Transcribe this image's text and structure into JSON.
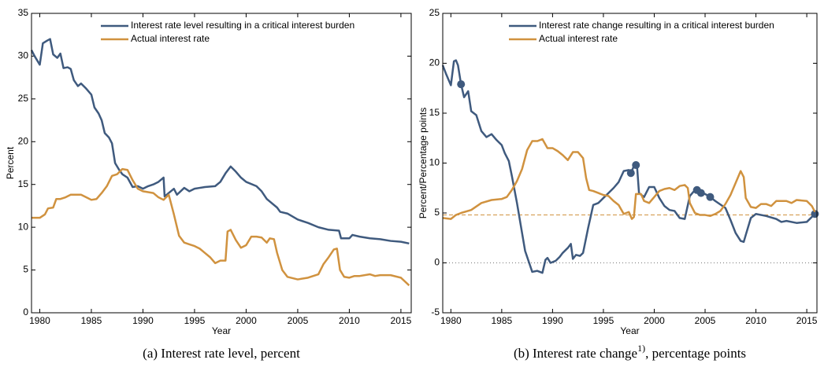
{
  "chart_data": [
    {
      "type": "line",
      "ylabel": "Percent",
      "xlabel": "Year",
      "caption": "(a) Interest rate level, percent",
      "xlim": [
        1979.2,
        2016
      ],
      "xticks": [
        1980,
        1985,
        1990,
        1995,
        2000,
        2005,
        2010,
        2015
      ],
      "ylim": [
        0,
        35
      ],
      "yticks": [
        0,
        5,
        10,
        15,
        20,
        25,
        30,
        35
      ],
      "series": [
        {
          "name": "Interest rate level resulting in a critical interest burden",
          "color": "#3f5a7e",
          "x": [
            1979.2,
            1979.5,
            1980,
            1980.3,
            1980.7,
            1981,
            1981.3,
            1981.7,
            1982,
            1982.3,
            1982.7,
            1983,
            1983.3,
            1983.7,
            1984,
            1984.5,
            1985,
            1985.3,
            1985.7,
            1986,
            1986.3,
            1986.7,
            1987,
            1987.3,
            1987.7,
            1988,
            1988.5,
            1989,
            1989.5,
            1990,
            1990.5,
            1991,
            1991.5,
            1992,
            1992.1,
            1992.5,
            1993,
            1993.3,
            1994,
            1994.5,
            1995,
            1995.5,
            1996,
            1997,
            1997.5,
            1998,
            1998.5,
            1999,
            1999.5,
            2000,
            2001,
            2001.5,
            2002,
            2003,
            2003.3,
            2004,
            2005,
            2006,
            2007,
            2008,
            2009,
            2009.2,
            2010,
            2010.3,
            2011,
            2012,
            2013,
            2014,
            2015,
            2015.8
          ],
          "values": [
            30.7,
            30,
            29,
            31.5,
            31.8,
            32,
            30.2,
            29.8,
            30.3,
            28.6,
            28.7,
            28.5,
            27.2,
            26.5,
            26.8,
            26.2,
            25.5,
            24,
            23.3,
            22.5,
            21,
            20.5,
            19.8,
            17.5,
            16.7,
            16.2,
            15.8,
            14.7,
            14.8,
            14.5,
            14.8,
            15,
            15.3,
            15.8,
            13.6,
            14,
            14.5,
            13.8,
            14.6,
            14.2,
            14.5,
            14.6,
            14.7,
            14.8,
            15.3,
            16.3,
            17.1,
            16.5,
            15.8,
            15.3,
            14.8,
            14.2,
            13.3,
            12.3,
            11.8,
            11.6,
            10.9,
            10.5,
            10,
            9.7,
            9.6,
            8.7,
            8.7,
            9.1,
            8.9,
            8.7,
            8.6,
            8.4,
            8.3,
            8.1
          ]
        },
        {
          "name": "Actual interest rate",
          "color": "#d0923f",
          "x": [
            1979.2,
            1980,
            1980.5,
            1980.8,
            1981.3,
            1981.6,
            1982,
            1982.5,
            1983,
            1984,
            1984.5,
            1985,
            1985.5,
            1986,
            1986.5,
            1987,
            1987.5,
            1988,
            1988.5,
            1989,
            1989.5,
            1990,
            1991,
            1991.5,
            1992,
            1992.5,
            1993,
            1993.5,
            1994,
            1994.5,
            1995,
            1995.5,
            1996,
            1996.5,
            1997,
            1997.5,
            1998,
            1998.2,
            1998.5,
            1999,
            1999.5,
            2000,
            2000.5,
            2001,
            2001.5,
            2002,
            2002.3,
            2002.7,
            2003,
            2003.5,
            2004,
            2005,
            2006,
            2007,
            2007.5,
            2008,
            2008.5,
            2008.8,
            2009.1,
            2009.5,
            2010,
            2010.5,
            2011,
            2012,
            2012.5,
            2013,
            2014,
            2015,
            2015.8
          ],
          "values": [
            11.1,
            11.1,
            11.5,
            12.2,
            12.3,
            13.3,
            13.3,
            13.5,
            13.8,
            13.8,
            13.5,
            13.2,
            13.3,
            14,
            14.8,
            16,
            16.2,
            16.8,
            16.7,
            15.5,
            14.5,
            14.2,
            14,
            13.5,
            13.2,
            13.8,
            11.5,
            9,
            8.2,
            8,
            7.8,
            7.5,
            7,
            6.5,
            5.8,
            6.1,
            6.1,
            9.5,
            9.7,
            8.5,
            7.6,
            7.9,
            8.9,
            8.9,
            8.8,
            8.2,
            8.7,
            8.6,
            7,
            5,
            4.2,
            3.9,
            4.1,
            4.5,
            5.7,
            6.5,
            7.4,
            7.5,
            5,
            4.2,
            4.1,
            4.3,
            4.3,
            4.5,
            4.3,
            4.4,
            4.4,
            4.1,
            3.2
          ]
        }
      ]
    },
    {
      "type": "line",
      "ylabel": "Percent/Percentage points",
      "xlabel": "Year",
      "caption": "(b) Interest rate change",
      "caption_superscript": "1)",
      "caption_tail": ", percentage points",
      "xlim": [
        1979.2,
        2016
      ],
      "xticks": [
        1980,
        1985,
        1990,
        1995,
        2000,
        2005,
        2010,
        2015
      ],
      "ylim": [
        -5,
        25
      ],
      "yticks": [
        -5,
        0,
        5,
        10,
        15,
        20,
        25
      ],
      "reference_lines": [
        {
          "value": 4.8,
          "color": "#d0923f",
          "style": "dashed"
        },
        {
          "value": 0,
          "color": "#777777",
          "style": "dotted"
        }
      ],
      "series": [
        {
          "name": "Interest rate change resulting in a critical interest burden",
          "color": "#3f5a7e",
          "x": [
            1979.2,
            1979.5,
            1980,
            1980.3,
            1980.5,
            1980.7,
            1981,
            1981.3,
            1981.7,
            1982,
            1982.5,
            1983,
            1983.5,
            1984,
            1984.5,
            1985,
            1985.3,
            1985.7,
            1986,
            1986.5,
            1987,
            1987.3,
            1987.7,
            1988,
            1988.5,
            1989,
            1989.3,
            1989.5,
            1989.8,
            1990.3,
            1990.7,
            1991,
            1991.5,
            1991.8,
            1992,
            1992.3,
            1992.7,
            1993,
            1993.5,
            1994,
            1994.5,
            1995,
            1995.5,
            1996,
            1996.5,
            1997,
            1997.5,
            1997.7,
            1998,
            1998.3,
            1998.5,
            1999,
            1999.5,
            2000,
            2000.5,
            2001,
            2001.5,
            2002,
            2002.5,
            2003,
            2003.5,
            2004,
            2004.5,
            2005,
            2005.5,
            2006,
            2007,
            2007.5,
            2008,
            2008.5,
            2008.8,
            2009,
            2009.5,
            2010,
            2011,
            2012,
            2012.5,
            2013,
            2014,
            2015,
            2015.8
          ],
          "values": [
            19.8,
            19,
            17.8,
            20.2,
            20.3,
            19.8,
            17.9,
            16.6,
            17.2,
            15.2,
            14.8,
            13.2,
            12.6,
            12.9,
            12.3,
            11.8,
            11,
            10.2,
            8.7,
            6,
            3,
            1.2,
            0,
            -0.9,
            -0.8,
            -1,
            0.3,
            0.5,
            0,
            0.2,
            0.6,
            1,
            1.5,
            1.9,
            0.4,
            0.8,
            0.7,
            1,
            3.5,
            5.8,
            6,
            6.5,
            7,
            7.5,
            8.1,
            9.2,
            9.3,
            9,
            9.7,
            9.8,
            7,
            6.6,
            7.6,
            7.6,
            6.5,
            5.7,
            5.3,
            5.2,
            4.5,
            4.4,
            6.7,
            7.3,
            7,
            6.9,
            6.6,
            6.2,
            5.5,
            4.3,
            3,
            2.2,
            2.1,
            2.8,
            4.5,
            4.9,
            4.7,
            4.4,
            4.1,
            4.2,
            4,
            4.1,
            4.9
          ],
          "highlight_x": [
            1981,
            1997.7,
            1998.2,
            2004.2,
            2004.6,
            2005.5,
            2015.8
          ],
          "highlight_values": [
            17.9,
            9,
            9.8,
            7.3,
            7,
            6.6,
            4.9
          ]
        },
        {
          "name": "Actual interest rate",
          "color": "#d0923f",
          "x": [
            1979.2,
            1980,
            1980.5,
            1981,
            1982,
            1983,
            1984,
            1985,
            1985.5,
            1986,
            1986.5,
            1987,
            1987.5,
            1988,
            1988.5,
            1989,
            1989.5,
            1990,
            1990.5,
            1991,
            1991.5,
            1992,
            1992.5,
            1993,
            1993.3,
            1993.6,
            1994,
            1994.5,
            1995,
            1995.5,
            1996,
            1996.5,
            1997,
            1997.5,
            1997.8,
            1998,
            1998.2,
            1998.7,
            1999,
            1999.5,
            2000,
            2000.5,
            2001,
            2001.5,
            2002,
            2002.5,
            2003,
            2003.3,
            2003.5,
            2004,
            2004.5,
            2005,
            2005.5,
            2006,
            2006.5,
            2007,
            2007.5,
            2008,
            2008.5,
            2008.8,
            2009,
            2009.5,
            2010,
            2010.5,
            2011,
            2011.5,
            2012,
            2013,
            2013.5,
            2014,
            2015,
            2015.5,
            2015.8
          ],
          "values": [
            4.5,
            4.4,
            4.8,
            5,
            5.3,
            6,
            6.3,
            6.4,
            6.6,
            7.3,
            8.2,
            9.4,
            11.3,
            12.2,
            12.2,
            12.4,
            11.5,
            11.5,
            11.2,
            10.8,
            10.3,
            11.1,
            11.1,
            10.5,
            8.5,
            7.3,
            7.2,
            7,
            6.8,
            6.7,
            6.2,
            5.8,
            4.9,
            5.1,
            4.4,
            4.6,
            6.9,
            6.9,
            6.2,
            6,
            6.6,
            7.2,
            7.4,
            7.5,
            7.3,
            7.7,
            7.8,
            7.5,
            6,
            5,
            4.8,
            4.8,
            4.7,
            4.9,
            5.2,
            5.9,
            6.8,
            8,
            9.2,
            8.6,
            6.5,
            5.6,
            5.5,
            5.9,
            5.9,
            5.7,
            6.2,
            6.2,
            6,
            6.3,
            6.2,
            5.7,
            5.1
          ]
        }
      ]
    }
  ]
}
